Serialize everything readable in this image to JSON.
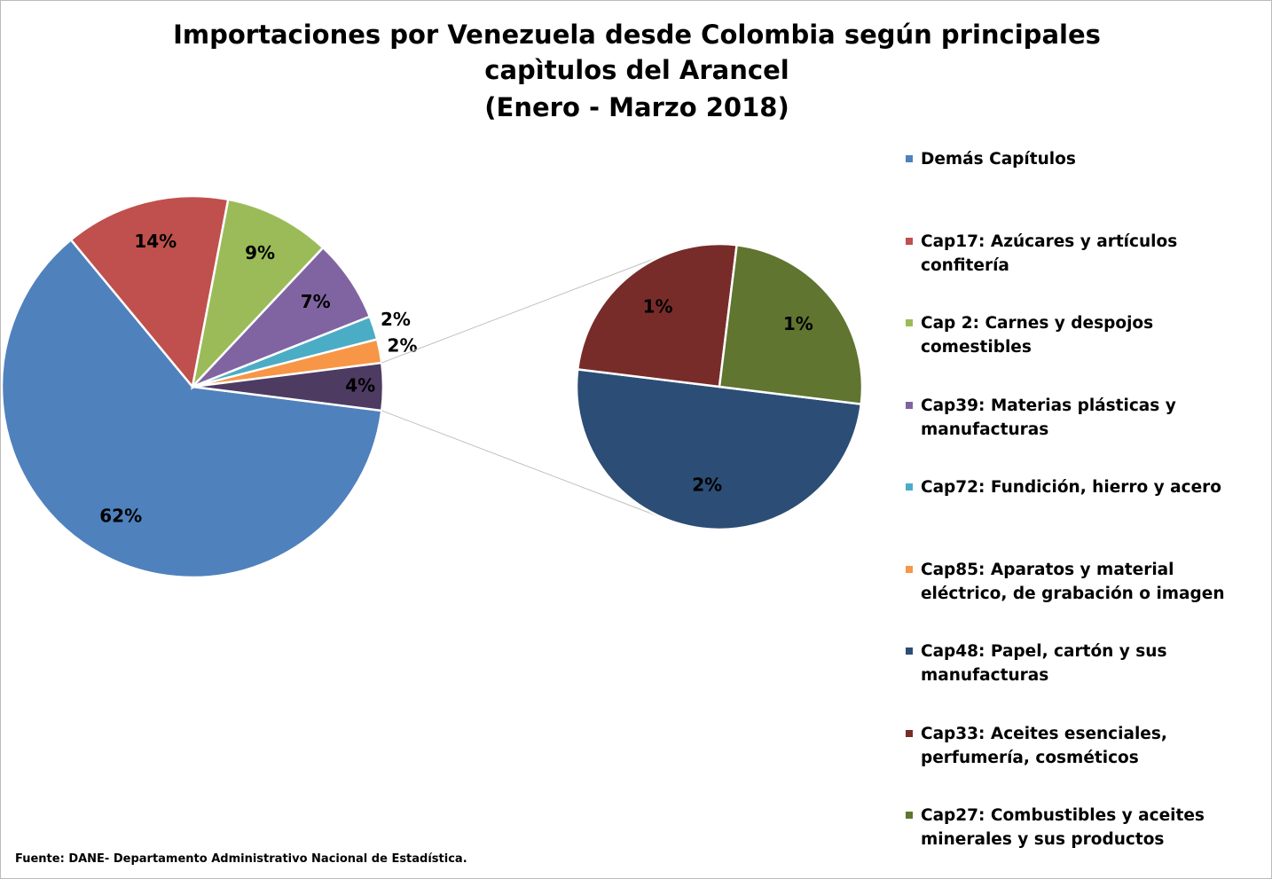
{
  "chart_data": {
    "type": "pie-of-pie",
    "title": [
      "Importaciones por Venezuela desde Colombia según principales",
      "capìtulos del Arancel",
      "(Enero - Marzo 2018)"
    ],
    "categories": [
      "Demás Capítulos",
      "Cap17: Azúcares y artículos confitería",
      "Cap 2: Carnes y despojos comestibles",
      "Cap39: Materias plásticas y manufacturas",
      "Cap72: Fundición, hierro y acero",
      "Cap85: Aparatos y material eléctrico, de grabación o imagen",
      "Cap48: Papel, cartón y sus manufacturas",
      "Cap33: Aceites esenciales, perfumería, cosméticos",
      "Cap27: Combustibles y aceites minerales y sus productos"
    ],
    "values": [
      62,
      14,
      9,
      7,
      2,
      2,
      2,
      1,
      1
    ],
    "value_labels": [
      "62%",
      "14%",
      "9%",
      "7%",
      "2%",
      "2%",
      "2%",
      "1%",
      "1%"
    ],
    "colors": [
      "#4f81bd",
      "#c0504d",
      "#9bbb59",
      "#8064a2",
      "#4bacc6",
      "#f79646",
      "#2c4d75",
      "#772c2a",
      "#5f7530"
    ],
    "second_plot_values": 3,
    "other_value": 4,
    "other_label": "4%",
    "other_color": "#4d3b62",
    "source": "Fuente: DANE- Departamento Administrativo Nacional de Estadística."
  }
}
